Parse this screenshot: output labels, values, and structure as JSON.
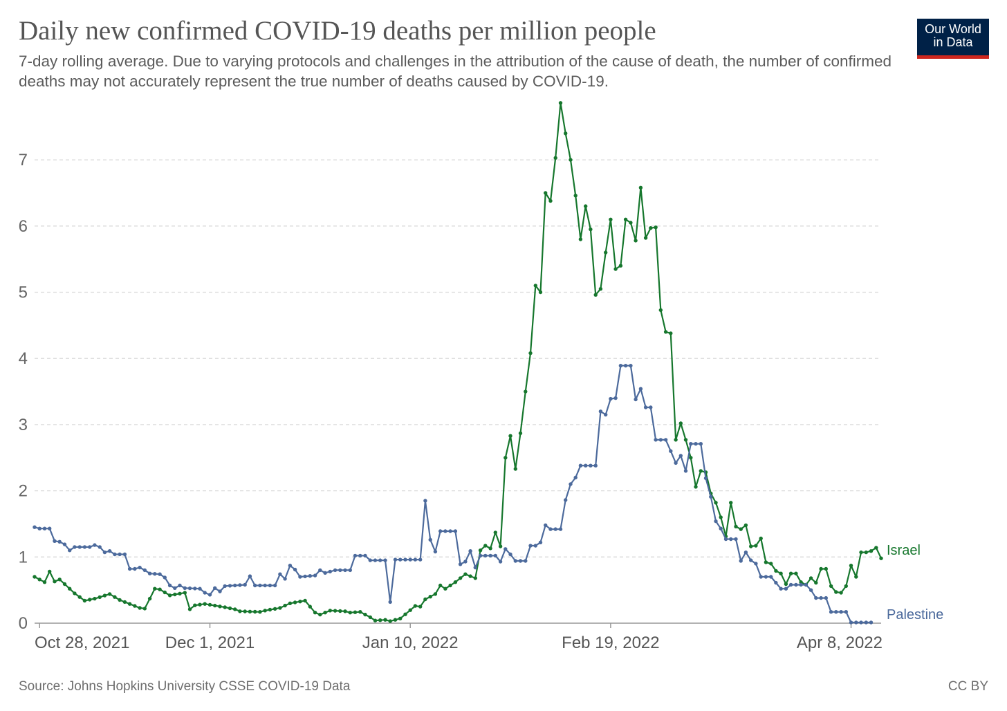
{
  "header": {
    "title": "Daily new confirmed COVID-19 deaths per million people",
    "subtitle": "7-day rolling average. Due to varying protocols and challenges in the attribution of the cause of death, the number of confirmed deaths may not accurately represent the true number of deaths caused by COVID-19."
  },
  "logo": {
    "line1": "Our World",
    "line2": "in Data",
    "bg_color": "#002147",
    "accent_color": "#ce261e"
  },
  "footer": {
    "source": "Source: Johns Hopkins University CSSE COVID-19 Data",
    "license": "CC BY"
  },
  "chart_data": {
    "type": "line",
    "title": "Daily new confirmed COVID-19 deaths per million people",
    "xlabel": "",
    "ylabel": "",
    "ylim": [
      0,
      7.9
    ],
    "yticks": [
      0,
      1,
      2,
      3,
      4,
      5,
      6,
      7
    ],
    "grid": true,
    "x_start": "Oct 27, 2021",
    "x_end": "Apr 13, 2022",
    "x_count": 169,
    "xticks": [
      {
        "label": "Oct 28, 2021",
        "index": 1
      },
      {
        "label": "Dec 1, 2021",
        "index": 35
      },
      {
        "label": "Jan 10, 2022",
        "index": 75
      },
      {
        "label": "Feb 19, 2022",
        "index": 115
      },
      {
        "label": "Apr 8, 2022",
        "index": 163
      }
    ],
    "series": [
      {
        "name": "Israel",
        "color": "#16772d",
        "points": [
          [
            0,
            0.7
          ],
          [
            2,
            0.62
          ],
          [
            3,
            0.78
          ],
          [
            4,
            0.63
          ],
          [
            5,
            0.66
          ],
          [
            8,
            0.45
          ],
          [
            10,
            0.34
          ],
          [
            12,
            0.37
          ],
          [
            15,
            0.44
          ],
          [
            17,
            0.35
          ],
          [
            19,
            0.29
          ],
          [
            21,
            0.23
          ],
          [
            22,
            0.22
          ],
          [
            24,
            0.52
          ],
          [
            25,
            0.51
          ],
          [
            27,
            0.42
          ],
          [
            30,
            0.46
          ],
          [
            31,
            0.21
          ],
          [
            32,
            0.27
          ],
          [
            34,
            0.29
          ],
          [
            38,
            0.24
          ],
          [
            40,
            0.21
          ],
          [
            41,
            0.18
          ],
          [
            45,
            0.17
          ],
          [
            46,
            0.19
          ],
          [
            49,
            0.23
          ],
          [
            51,
            0.3
          ],
          [
            54,
            0.34
          ],
          [
            56,
            0.16
          ],
          [
            57,
            0.13
          ],
          [
            59,
            0.19
          ],
          [
            62,
            0.18
          ],
          [
            63,
            0.16
          ],
          [
            65,
            0.17
          ],
          [
            67,
            0.09
          ],
          [
            68,
            0.04
          ],
          [
            70,
            0.05
          ],
          [
            71,
            0.03
          ],
          [
            73,
            0.07
          ],
          [
            76,
            0.26
          ],
          [
            77,
            0.25
          ],
          [
            78,
            0.36
          ],
          [
            80,
            0.44
          ],
          [
            81,
            0.57
          ],
          [
            82,
            0.52
          ],
          [
            84,
            0.62
          ],
          [
            86,
            0.74
          ],
          [
            88,
            0.68
          ],
          [
            89,
            1.1
          ],
          [
            90,
            1.17
          ],
          [
            91,
            1.13
          ],
          [
            92,
            1.37
          ],
          [
            93,
            1.16
          ],
          [
            94,
            2.5
          ],
          [
            95,
            2.83
          ],
          [
            96,
            2.33
          ],
          [
            97,
            2.87
          ],
          [
            98,
            3.5
          ],
          [
            99,
            4.08
          ],
          [
            100,
            5.1
          ],
          [
            101,
            5.0
          ],
          [
            102,
            6.5
          ],
          [
            103,
            6.38
          ],
          [
            104,
            7.03
          ],
          [
            105,
            7.86
          ],
          [
            106,
            7.4
          ],
          [
            107,
            7.0
          ],
          [
            108,
            6.46
          ],
          [
            109,
            5.8
          ],
          [
            110,
            6.3
          ],
          [
            111,
            5.95
          ],
          [
            112,
            4.96
          ],
          [
            113,
            5.05
          ],
          [
            114,
            5.6
          ],
          [
            115,
            6.1
          ],
          [
            116,
            5.35
          ],
          [
            117,
            5.4
          ],
          [
            118,
            6.1
          ],
          [
            119,
            6.05
          ],
          [
            120,
            5.78
          ],
          [
            121,
            6.58
          ],
          [
            122,
            5.82
          ],
          [
            123,
            5.97
          ],
          [
            124,
            5.98
          ],
          [
            125,
            4.73
          ],
          [
            126,
            4.4
          ],
          [
            127,
            4.38
          ],
          [
            128,
            2.77
          ],
          [
            129,
            3.02
          ],
          [
            130,
            2.77
          ],
          [
            131,
            2.5
          ],
          [
            132,
            2.06
          ],
          [
            133,
            2.3
          ],
          [
            134,
            2.28
          ],
          [
            135,
            1.96
          ],
          [
            136,
            1.82
          ],
          [
            137,
            1.6
          ],
          [
            138,
            1.31
          ],
          [
            139,
            1.82
          ],
          [
            140,
            1.46
          ],
          [
            141,
            1.42
          ],
          [
            142,
            1.48
          ],
          [
            143,
            1.16
          ],
          [
            144,
            1.17
          ],
          [
            145,
            1.28
          ],
          [
            146,
            0.92
          ],
          [
            147,
            0.9
          ],
          [
            148,
            0.79
          ],
          [
            149,
            0.75
          ],
          [
            150,
            0.59
          ],
          [
            151,
            0.75
          ],
          [
            152,
            0.75
          ],
          [
            153,
            0.62
          ],
          [
            154,
            0.58
          ],
          [
            155,
            0.68
          ],
          [
            156,
            0.61
          ],
          [
            157,
            0.82
          ],
          [
            158,
            0.82
          ],
          [
            159,
            0.56
          ],
          [
            160,
            0.47
          ],
          [
            161,
            0.46
          ],
          [
            162,
            0.56
          ],
          [
            163,
            0.87
          ],
          [
            164,
            0.7
          ],
          [
            165,
            1.07
          ],
          [
            166,
            1.07
          ],
          [
            167,
            1.09
          ],
          [
            168,
            1.14
          ],
          [
            169,
            0.98
          ]
        ]
      },
      {
        "name": "Palestine",
        "color": "#4c6a9c",
        "points": [
          [
            0,
            1.45
          ],
          [
            1,
            1.43
          ],
          [
            3,
            1.43
          ],
          [
            4,
            1.24
          ],
          [
            5,
            1.23
          ],
          [
            6,
            1.19
          ],
          [
            7,
            1.1
          ],
          [
            8,
            1.15
          ],
          [
            11,
            1.15
          ],
          [
            12,
            1.18
          ],
          [
            13,
            1.15
          ],
          [
            14,
            1.07
          ],
          [
            15,
            1.09
          ],
          [
            16,
            1.04
          ],
          [
            18,
            1.04
          ],
          [
            19,
            0.82
          ],
          [
            20,
            0.82
          ],
          [
            21,
            0.84
          ],
          [
            22,
            0.8
          ],
          [
            23,
            0.75
          ],
          [
            25,
            0.74
          ],
          [
            26,
            0.69
          ],
          [
            27,
            0.57
          ],
          [
            28,
            0.53
          ],
          [
            29,
            0.57
          ],
          [
            30,
            0.53
          ],
          [
            33,
            0.52
          ],
          [
            34,
            0.46
          ],
          [
            35,
            0.43
          ],
          [
            36,
            0.53
          ],
          [
            37,
            0.48
          ],
          [
            38,
            0.56
          ],
          [
            42,
            0.58
          ],
          [
            43,
            0.71
          ],
          [
            44,
            0.57
          ],
          [
            48,
            0.57
          ],
          [
            49,
            0.74
          ],
          [
            50,
            0.67
          ],
          [
            51,
            0.87
          ],
          [
            52,
            0.81
          ],
          [
            53,
            0.7
          ],
          [
            56,
            0.72
          ],
          [
            57,
            0.8
          ],
          [
            58,
            0.76
          ],
          [
            60,
            0.8
          ],
          [
            63,
            0.8
          ],
          [
            64,
            1.02
          ],
          [
            66,
            1.02
          ],
          [
            67,
            0.95
          ],
          [
            70,
            0.95
          ],
          [
            71,
            0.32
          ],
          [
            72,
            0.96
          ],
          [
            77,
            0.96
          ],
          [
            78,
            1.85
          ],
          [
            79,
            1.26
          ],
          [
            80,
            1.08
          ],
          [
            81,
            1.39
          ],
          [
            84,
            1.39
          ],
          [
            85,
            0.89
          ],
          [
            86,
            0.93
          ],
          [
            87,
            1.09
          ],
          [
            88,
            0.84
          ],
          [
            89,
            1.02
          ],
          [
            92,
            1.02
          ],
          [
            93,
            0.93
          ],
          [
            94,
            1.12
          ],
          [
            95,
            1.04
          ],
          [
            96,
            0.94
          ],
          [
            98,
            0.94
          ],
          [
            99,
            1.17
          ],
          [
            100,
            1.17
          ],
          [
            101,
            1.22
          ],
          [
            102,
            1.48
          ],
          [
            103,
            1.42
          ],
          [
            105,
            1.42
          ],
          [
            106,
            1.86
          ],
          [
            107,
            2.1
          ],
          [
            108,
            2.2
          ],
          [
            109,
            2.38
          ],
          [
            112,
            2.38
          ],
          [
            113,
            3.2
          ],
          [
            114,
            3.15
          ],
          [
            115,
            3.39
          ],
          [
            116,
            3.4
          ],
          [
            117,
            3.89
          ],
          [
            119,
            3.89
          ],
          [
            120,
            3.38
          ],
          [
            121,
            3.54
          ],
          [
            122,
            3.26
          ],
          [
            123,
            3.26
          ],
          [
            124,
            2.77
          ],
          [
            126,
            2.77
          ],
          [
            127,
            2.6
          ],
          [
            128,
            2.42
          ],
          [
            129,
            2.53
          ],
          [
            130,
            2.3
          ],
          [
            131,
            2.71
          ],
          [
            133,
            2.71
          ],
          [
            134,
            2.19
          ],
          [
            135,
            1.91
          ],
          [
            136,
            1.54
          ],
          [
            137,
            1.43
          ],
          [
            138,
            1.27
          ],
          [
            140,
            1.27
          ],
          [
            141,
            0.94
          ],
          [
            142,
            1.07
          ],
          [
            143,
            0.95
          ],
          [
            144,
            0.9
          ],
          [
            145,
            0.7
          ],
          [
            147,
            0.7
          ],
          [
            148,
            0.61
          ],
          [
            149,
            0.52
          ],
          [
            150,
            0.52
          ],
          [
            151,
            0.58
          ],
          [
            153,
            0.58
          ],
          [
            154,
            0.58
          ],
          [
            155,
            0.5
          ],
          [
            156,
            0.38
          ],
          [
            158,
            0.38
          ],
          [
            159,
            0.17
          ],
          [
            162,
            0.17
          ],
          [
            163,
            0.01
          ],
          [
            167,
            0.01
          ]
        ]
      }
    ]
  }
}
